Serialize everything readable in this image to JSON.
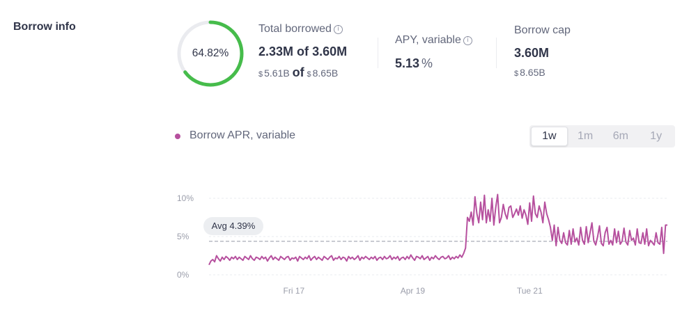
{
  "section": {
    "title": "Borrow info"
  },
  "utilization": {
    "label": "64.82%",
    "fraction": 0.6482,
    "color": "#46bc4b",
    "track_color": "#eaebef"
  },
  "total_borrowed": {
    "label": "Total borrowed",
    "amount": "2.33M",
    "of_word": "of",
    "cap": "3.60M",
    "usd_symbol": "$",
    "usd_amount": "5.61B",
    "usd_cap": "8.65B"
  },
  "apy": {
    "label": "APY, variable",
    "value": "5.13",
    "unit": "%"
  },
  "borrow_cap": {
    "label": "Borrow cap",
    "value": "3.60M",
    "usd_symbol": "$",
    "usd_value": "8.65B"
  },
  "icons": {
    "info": "info-icon",
    "info_glyph": "i"
  },
  "legend": {
    "label": "Borrow APR, variable",
    "color": "#b6509e"
  },
  "time_ranges": [
    {
      "label": "1w",
      "active": true
    },
    {
      "label": "1m",
      "active": false
    },
    {
      "label": "6m",
      "active": false
    },
    {
      "label": "1y",
      "active": false
    }
  ],
  "chart_data": {
    "type": "line",
    "series": [
      {
        "name": "Borrow APR, variable",
        "color": "#b6509e",
        "values": [
          1.3,
          1.8,
          2.0,
          1.7,
          2.5,
          2.1,
          1.8,
          2.3,
          2.0,
          2.4,
          2.2,
          1.9,
          2.3,
          2.1,
          2.4,
          2.0,
          2.3,
          2.1,
          1.9,
          2.4,
          2.2,
          2.0,
          2.5,
          2.1,
          1.9,
          2.3,
          2.2,
          2.0,
          2.4,
          2.1,
          2.3,
          1.8,
          2.2,
          2.5,
          2.0,
          2.3,
          2.1,
          1.9,
          2.4,
          2.2,
          2.0,
          2.3,
          2.4,
          1.9,
          2.2,
          2.1,
          2.3,
          1.8,
          2.4,
          2.2,
          2.0,
          2.3,
          2.1,
          2.5,
          1.9,
          2.2,
          2.4,
          2.0,
          2.3,
          2.1,
          1.9,
          2.4,
          2.2,
          2.0,
          2.3,
          2.5,
          1.9,
          2.2,
          2.1,
          2.4,
          2.0,
          2.3,
          2.2,
          1.8,
          2.4,
          2.1,
          2.3,
          2.0,
          2.2,
          2.5,
          1.9,
          2.3,
          2.1,
          2.4,
          2.2,
          2.0,
          2.3,
          2.1,
          2.4,
          1.9,
          2.2,
          2.3,
          2.0,
          2.4,
          2.1,
          2.2,
          2.5,
          2.0,
          2.3,
          2.1,
          2.4,
          1.9,
          2.2,
          2.3,
          2.0,
          2.4,
          2.1,
          2.6,
          2.2,
          1.9,
          2.4,
          2.3,
          2.1,
          2.5,
          2.0,
          2.2,
          2.4,
          1.9,
          2.3,
          2.1,
          2.5,
          2.2,
          2.0,
          2.3,
          2.4,
          2.1,
          2.2,
          2.5,
          2.0,
          2.3,
          2.1,
          2.4,
          2.2,
          2.6,
          2.3,
          2.8,
          3.5,
          7.5,
          7.0,
          8.2,
          6.5,
          10.2,
          8.0,
          6.8,
          9.5,
          7.2,
          10.4,
          6.8,
          8.5,
          7.0,
          10.0,
          6.5,
          8.8,
          10.5,
          6.8,
          7.5,
          9.2,
          8.0,
          7.3,
          8.8,
          9.0,
          7.5,
          8.0,
          8.6,
          7.8,
          9.0,
          7.4,
          8.5,
          7.8,
          6.6,
          9.4,
          7.0,
          10.3,
          8.0,
          7.5,
          9.0,
          8.2,
          6.8,
          9.5,
          8.0,
          7.2,
          6.2,
          4.5,
          6.5,
          3.8,
          6.2,
          4.5,
          4.1,
          5.5,
          4.2,
          3.9,
          5.8,
          4.0,
          6.0,
          4.3,
          4.8,
          3.9,
          6.2,
          4.5,
          4.0,
          6.3,
          4.2,
          5.5,
          6.8,
          4.4,
          3.9,
          5.0,
          6.4,
          4.1,
          3.8,
          5.5,
          6.2,
          4.0,
          4.5,
          3.9,
          6.0,
          4.2,
          5.7,
          4.0,
          4.4,
          6.1,
          4.3,
          3.9,
          5.8,
          4.5,
          4.8,
          3.9,
          6.0,
          4.2,
          4.1,
          5.5,
          4.0,
          6.0,
          3.8,
          4.5,
          4.2,
          3.9,
          5.5,
          4.2,
          4.0,
          6.2,
          2.8,
          6.5,
          6.5
        ]
      }
    ],
    "x_ticks": [
      "Fri 17",
      "Apr 19",
      "Tue 21"
    ],
    "y_ticks": [
      "10%",
      "5%",
      "0%"
    ],
    "ylim": [
      0,
      10
    ],
    "average": {
      "label": "Avg 4.39%",
      "value": 4.39
    },
    "grid": true
  }
}
